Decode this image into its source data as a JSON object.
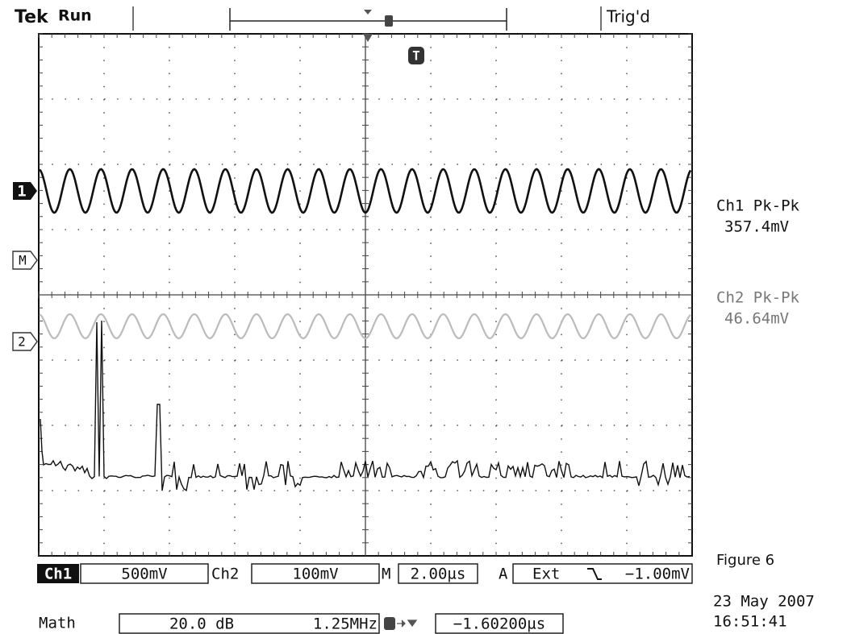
{
  "header": {
    "brand": "Tek",
    "status": "Run",
    "trigger_state": "Trig'd"
  },
  "markers": {
    "ch1": "1",
    "math": "M",
    "ch2": "2",
    "trigger": "T"
  },
  "measurements": [
    {
      "label": "Ch1 Pk-Pk",
      "value": "357.4mV"
    },
    {
      "label": "Ch2 Pk-Pk",
      "value": "46.64mV"
    }
  ],
  "settings": {
    "ch1_label": "Ch1",
    "ch1_scale": "500mV",
    "ch2_label": "Ch2",
    "ch2_scale": "100mV",
    "time_label": "M",
    "time_scale": "2.00µs",
    "trigger_label": "A",
    "trigger_source": "Ext",
    "trigger_level": "−1.00mV"
  },
  "math": {
    "label": "Math",
    "scale": "20.0 dB",
    "span": "1.25MHz",
    "position": "−1.60200µs"
  },
  "caption": "Figure 6",
  "date": "23 May 2007",
  "time": "16:51:41"
}
